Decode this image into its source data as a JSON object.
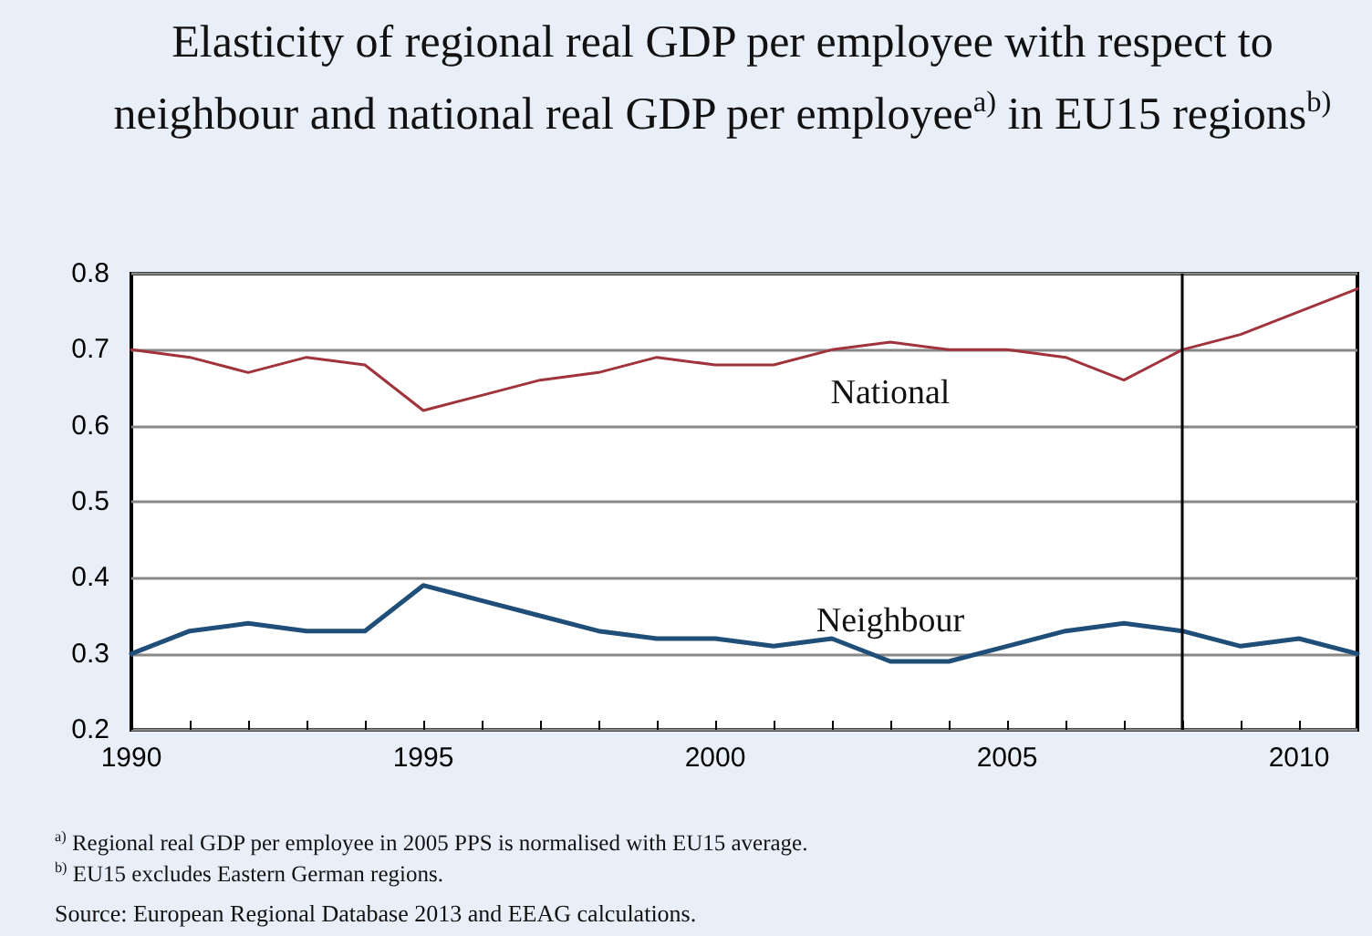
{
  "chart_data": {
    "type": "line",
    "title": "Elasticity of regional real GDP per employee with respect to neighbour and national real GDP per employee$^{a)}$ in EU15 regions$^{b)}$",
    "x": [
      1990,
      1991,
      1992,
      1993,
      1994,
      1995,
      1996,
      1997,
      1998,
      1999,
      2000,
      2001,
      2002,
      2003,
      2004,
      2005,
      2006,
      2007,
      2008,
      2009,
      2010,
      2011
    ],
    "series": [
      {
        "name": "National",
        "color": "#a0333c",
        "values": [
          0.7,
          0.69,
          0.67,
          0.69,
          0.68,
          0.62,
          0.64,
          0.66,
          0.67,
          0.69,
          0.68,
          0.68,
          0.7,
          0.71,
          0.7,
          0.7,
          0.69,
          0.66,
          0.7,
          0.72,
          0.75,
          0.78
        ]
      },
      {
        "name": "Neighbour",
        "color": "#1f4e79",
        "values": [
          0.3,
          0.33,
          0.34,
          0.33,
          0.33,
          0.39,
          0.37,
          0.35,
          0.33,
          0.32,
          0.32,
          0.31,
          0.32,
          0.29,
          0.29,
          0.31,
          0.33,
          0.34,
          0.33,
          0.31,
          0.32,
          0.3
        ]
      }
    ],
    "xlim": [
      1990,
      2011
    ],
    "xticks": [
      1990,
      {
        "value": 1991,
        "label": null
      },
      {
        "value": 1992,
        "label": null
      },
      {
        "value": 1993,
        "label": null
      },
      {
        "value": 1994,
        "label": null
      },
      1995,
      {
        "value": 1996,
        "label": null
      },
      {
        "value": 1997,
        "label": null
      },
      {
        "value": 1998,
        "label": null
      },
      {
        "value": 1999,
        "label": null
      },
      2000,
      {
        "value": 2001,
        "label": null
      },
      {
        "value": 2002,
        "label": null
      },
      {
        "value": 2003,
        "label": null
      },
      {
        "value": 2004,
        "label": null
      },
      2005,
      {
        "value": 2006,
        "label": null
      },
      {
        "value": 2007,
        "label": null
      },
      {
        "value": 2008,
        "label": null
      },
      {
        "value": 2009,
        "label": null
      },
      2010
    ],
    "ylim": [
      0.2,
      0.8
    ],
    "yticks": [
      0.2,
      0.3,
      0.4,
      0.5,
      0.6,
      0.7,
      0.8
    ],
    "ref_lines": [
      {
        "axis": "x",
        "value": 2008,
        "color": "#000000"
      }
    ],
    "grid": "y",
    "legend": false,
    "marker": "none",
    "line_style": "solid",
    "annotations": [
      "$^{a)}$ Regional real GDP per employee in 2005 PPS is normalised with EU15 average.",
      "$^{b)}$ EU15 excludes Eastern German regions.",
      "Source: European Regional Database 2013 and EEAG calculations."
    ]
  }
}
